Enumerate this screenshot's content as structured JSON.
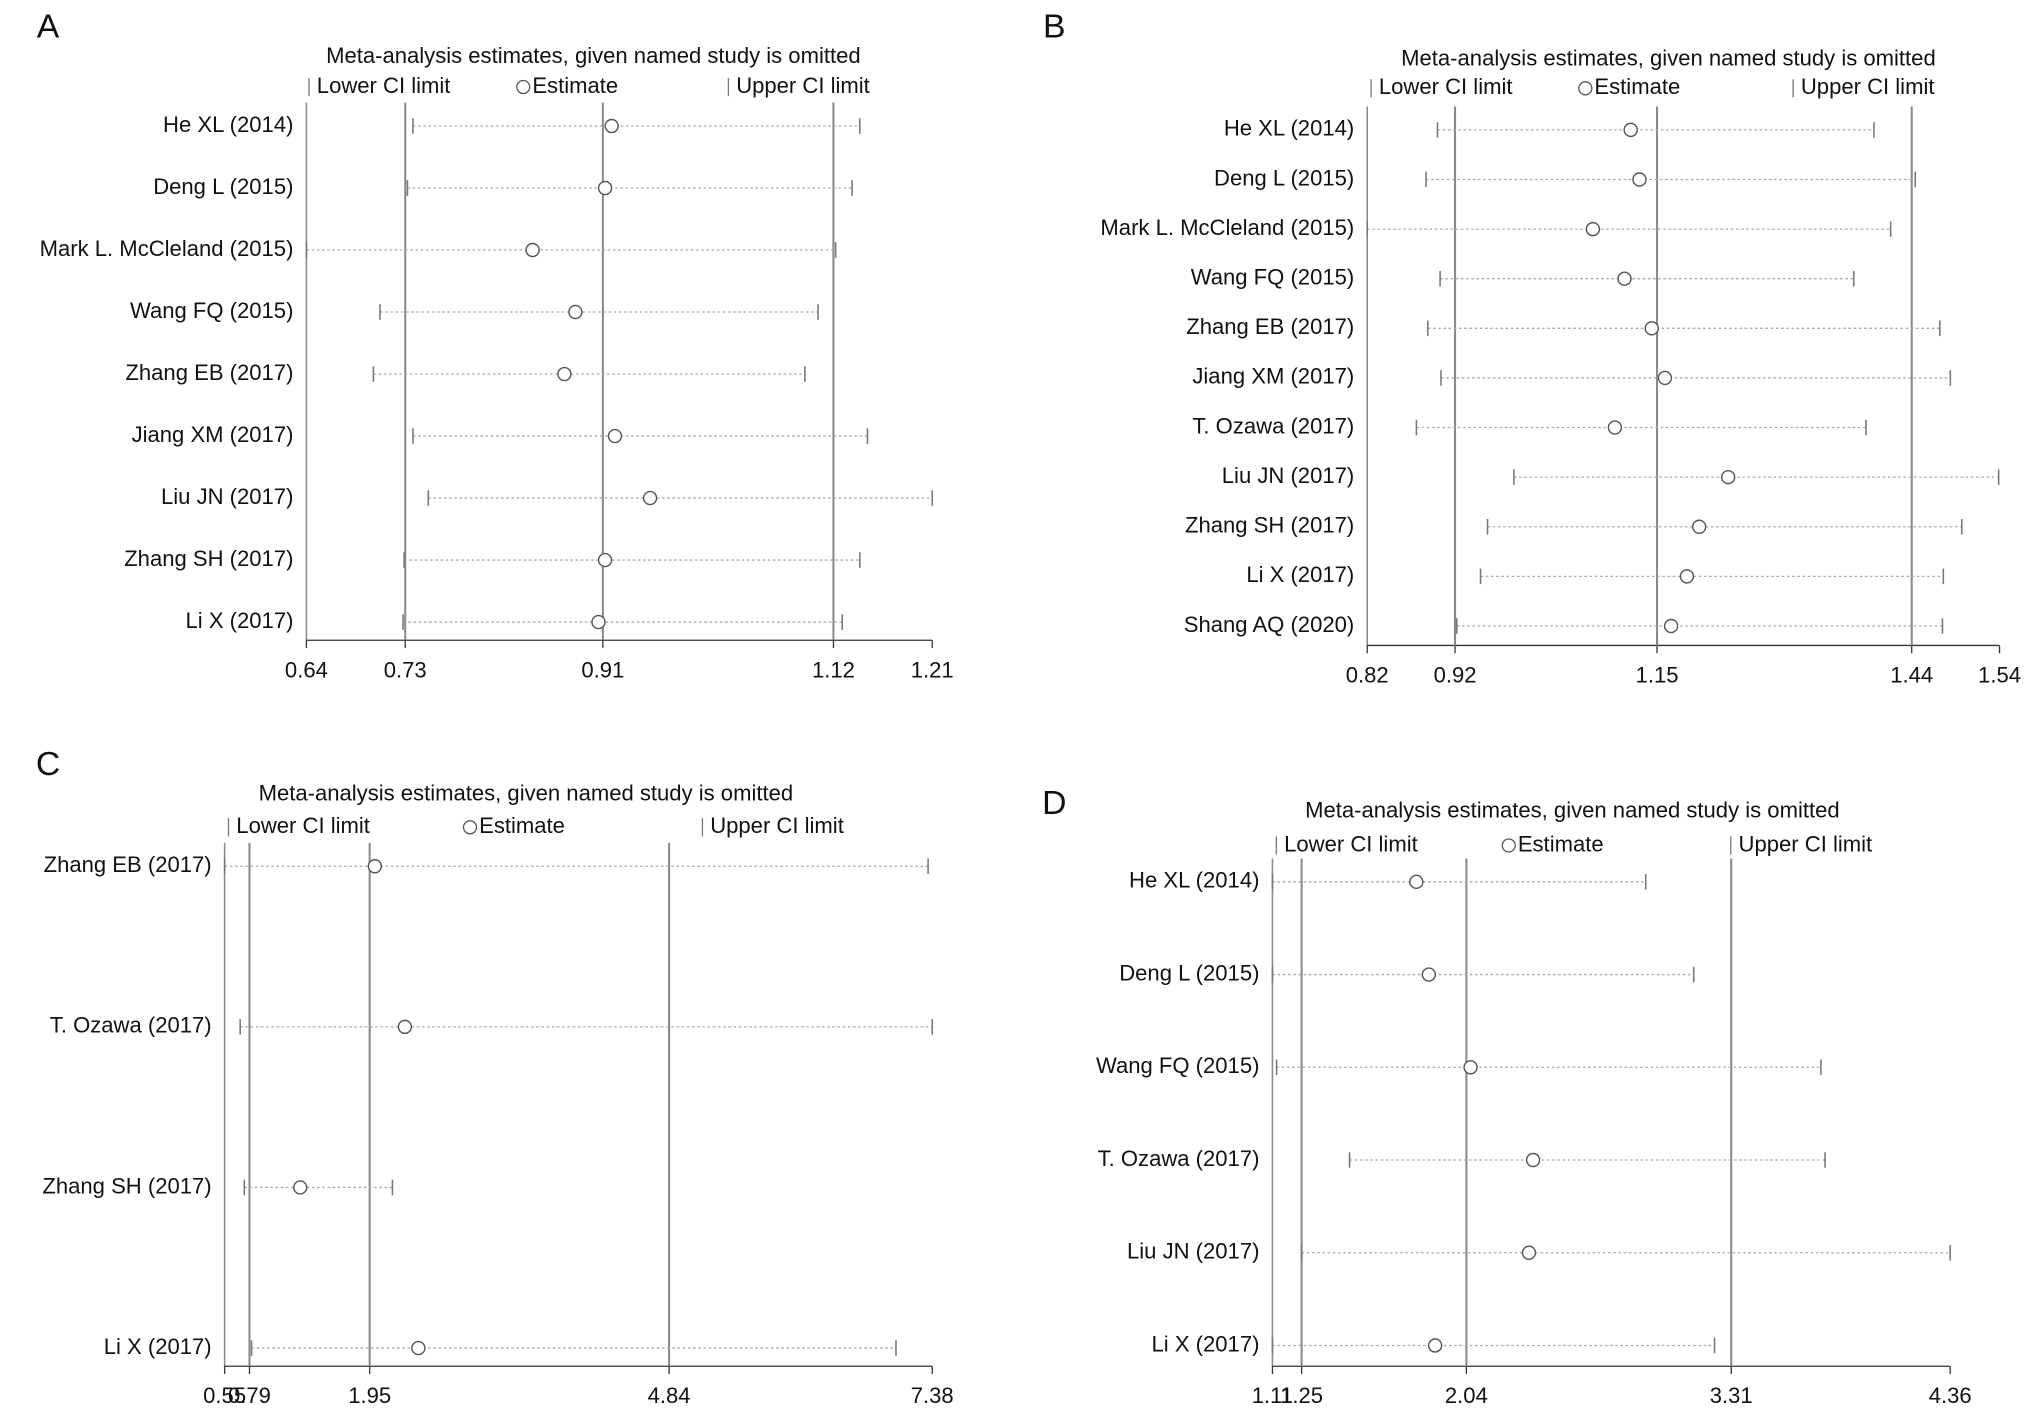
{
  "chart_data": [
    {
      "type": "forest",
      "panel": "A",
      "title": "Meta-analysis estimates, given named study is omitted",
      "categories": [
        "He XL (2014)",
        "Deng L (2015)",
        "Mark L. McCleland (2015)",
        "Wang FQ (2015)",
        "Zhang EB (2017)",
        "Jiang XM (2017)",
        "Liu JN (2017)",
        "Zhang SH (2017)",
        "Li X (2017)"
      ],
      "series": [
        {
          "name": "Lower CI limit",
          "values": [
            0.737,
            0.732,
            0.64,
            0.707,
            0.701,
            0.737,
            0.751,
            0.729,
            0.728
          ]
        },
        {
          "name": "Estimate",
          "values": [
            0.918,
            0.912,
            0.846,
            0.885,
            0.875,
            0.921,
            0.953,
            0.912,
            0.906
          ]
        },
        {
          "name": "Upper CI limit",
          "values": [
            1.144,
            1.137,
            1.122,
            1.106,
            1.094,
            1.151,
            1.21,
            1.144,
            1.128
          ]
        }
      ],
      "reference_lines": [
        0.73,
        0.91,
        1.12
      ],
      "xlim": [
        0.64,
        1.21
      ],
      "xticks": [
        0.64,
        0.73,
        0.91,
        1.12,
        1.21
      ]
    },
    {
      "type": "forest",
      "panel": "B",
      "title": "Meta-analysis estimates, given named study is omitted",
      "categories": [
        "He XL (2014)",
        "Deng L (2015)",
        "Mark L. McCleland (2015)",
        "Wang FQ (2015)",
        "Zhang EB (2017)",
        "Jiang XM (2017)",
        "T. Ozawa (2017)",
        "Liu JN (2017)",
        "Zhang SH (2017)",
        "Li X (2017)",
        "Shang AQ (2020)"
      ],
      "series": [
        {
          "name": "Lower CI limit",
          "values": [
            0.9,
            0.887,
            0.82,
            0.903,
            0.889,
            0.904,
            0.876,
            0.987,
            0.957,
            0.949,
            0.922
          ]
        },
        {
          "name": "Estimate",
          "values": [
            1.12,
            1.13,
            1.077,
            1.113,
            1.144,
            1.159,
            1.102,
            1.231,
            1.198,
            1.184,
            1.166
          ]
        },
        {
          "name": "Upper CI limit",
          "values": [
            1.397,
            1.444,
            1.416,
            1.374,
            1.472,
            1.484,
            1.388,
            1.539,
            1.497,
            1.476,
            1.475
          ]
        }
      ],
      "reference_lines": [
        0.92,
        1.15,
        1.44
      ],
      "xlim": [
        0.82,
        1.54
      ],
      "xticks": [
        0.82,
        0.92,
        1.15,
        1.44,
        1.54
      ]
    },
    {
      "type": "forest",
      "panel": "C",
      "title": "Meta-analysis estimates, given named study is omitted",
      "categories": [
        "Zhang EB (2017)",
        "T. Ozawa (2017)",
        "Zhang SH (2017)",
        "Li X (2017)"
      ],
      "series": [
        {
          "name": "Lower CI limit",
          "values": [
            0.55,
            0.7,
            0.74,
            0.81
          ]
        },
        {
          "name": "Estimate",
          "values": [
            2.0,
            2.29,
            1.28,
            2.42
          ]
        },
        {
          "name": "Upper CI limit",
          "values": [
            7.34,
            7.38,
            2.17,
            7.03
          ]
        }
      ],
      "reference_lines": [
        0.79,
        1.95,
        4.84
      ],
      "xlim": [
        0.55,
        7.38
      ],
      "xticks": [
        0.55,
        0.79,
        1.95,
        4.84,
        7.38
      ]
    },
    {
      "type": "forest",
      "panel": "D",
      "title": "Meta-analysis estimates, given named study is omitted",
      "categories": [
        "He XL (2014)",
        "Deng L (2015)",
        "Wang FQ (2015)",
        "T. Ozawa (2017)",
        "Liu JN (2017)",
        "Li X (2017)"
      ],
      "series": [
        {
          "name": "Lower CI limit",
          "values": [
            1.11,
            1.11,
            1.13,
            1.48,
            1.25,
            1.11
          ]
        },
        {
          "name": "Estimate",
          "values": [
            1.8,
            1.86,
            2.06,
            2.36,
            2.34,
            1.89
          ]
        },
        {
          "name": "Upper CI limit",
          "values": [
            2.9,
            3.13,
            3.74,
            3.76,
            4.36,
            3.23
          ]
        }
      ],
      "reference_lines": [
        1.25,
        2.04,
        3.31
      ],
      "xlim": [
        1.11,
        4.36
      ],
      "xticks": [
        1.11,
        1.25,
        2.04,
        3.31,
        4.36
      ]
    }
  ]
}
